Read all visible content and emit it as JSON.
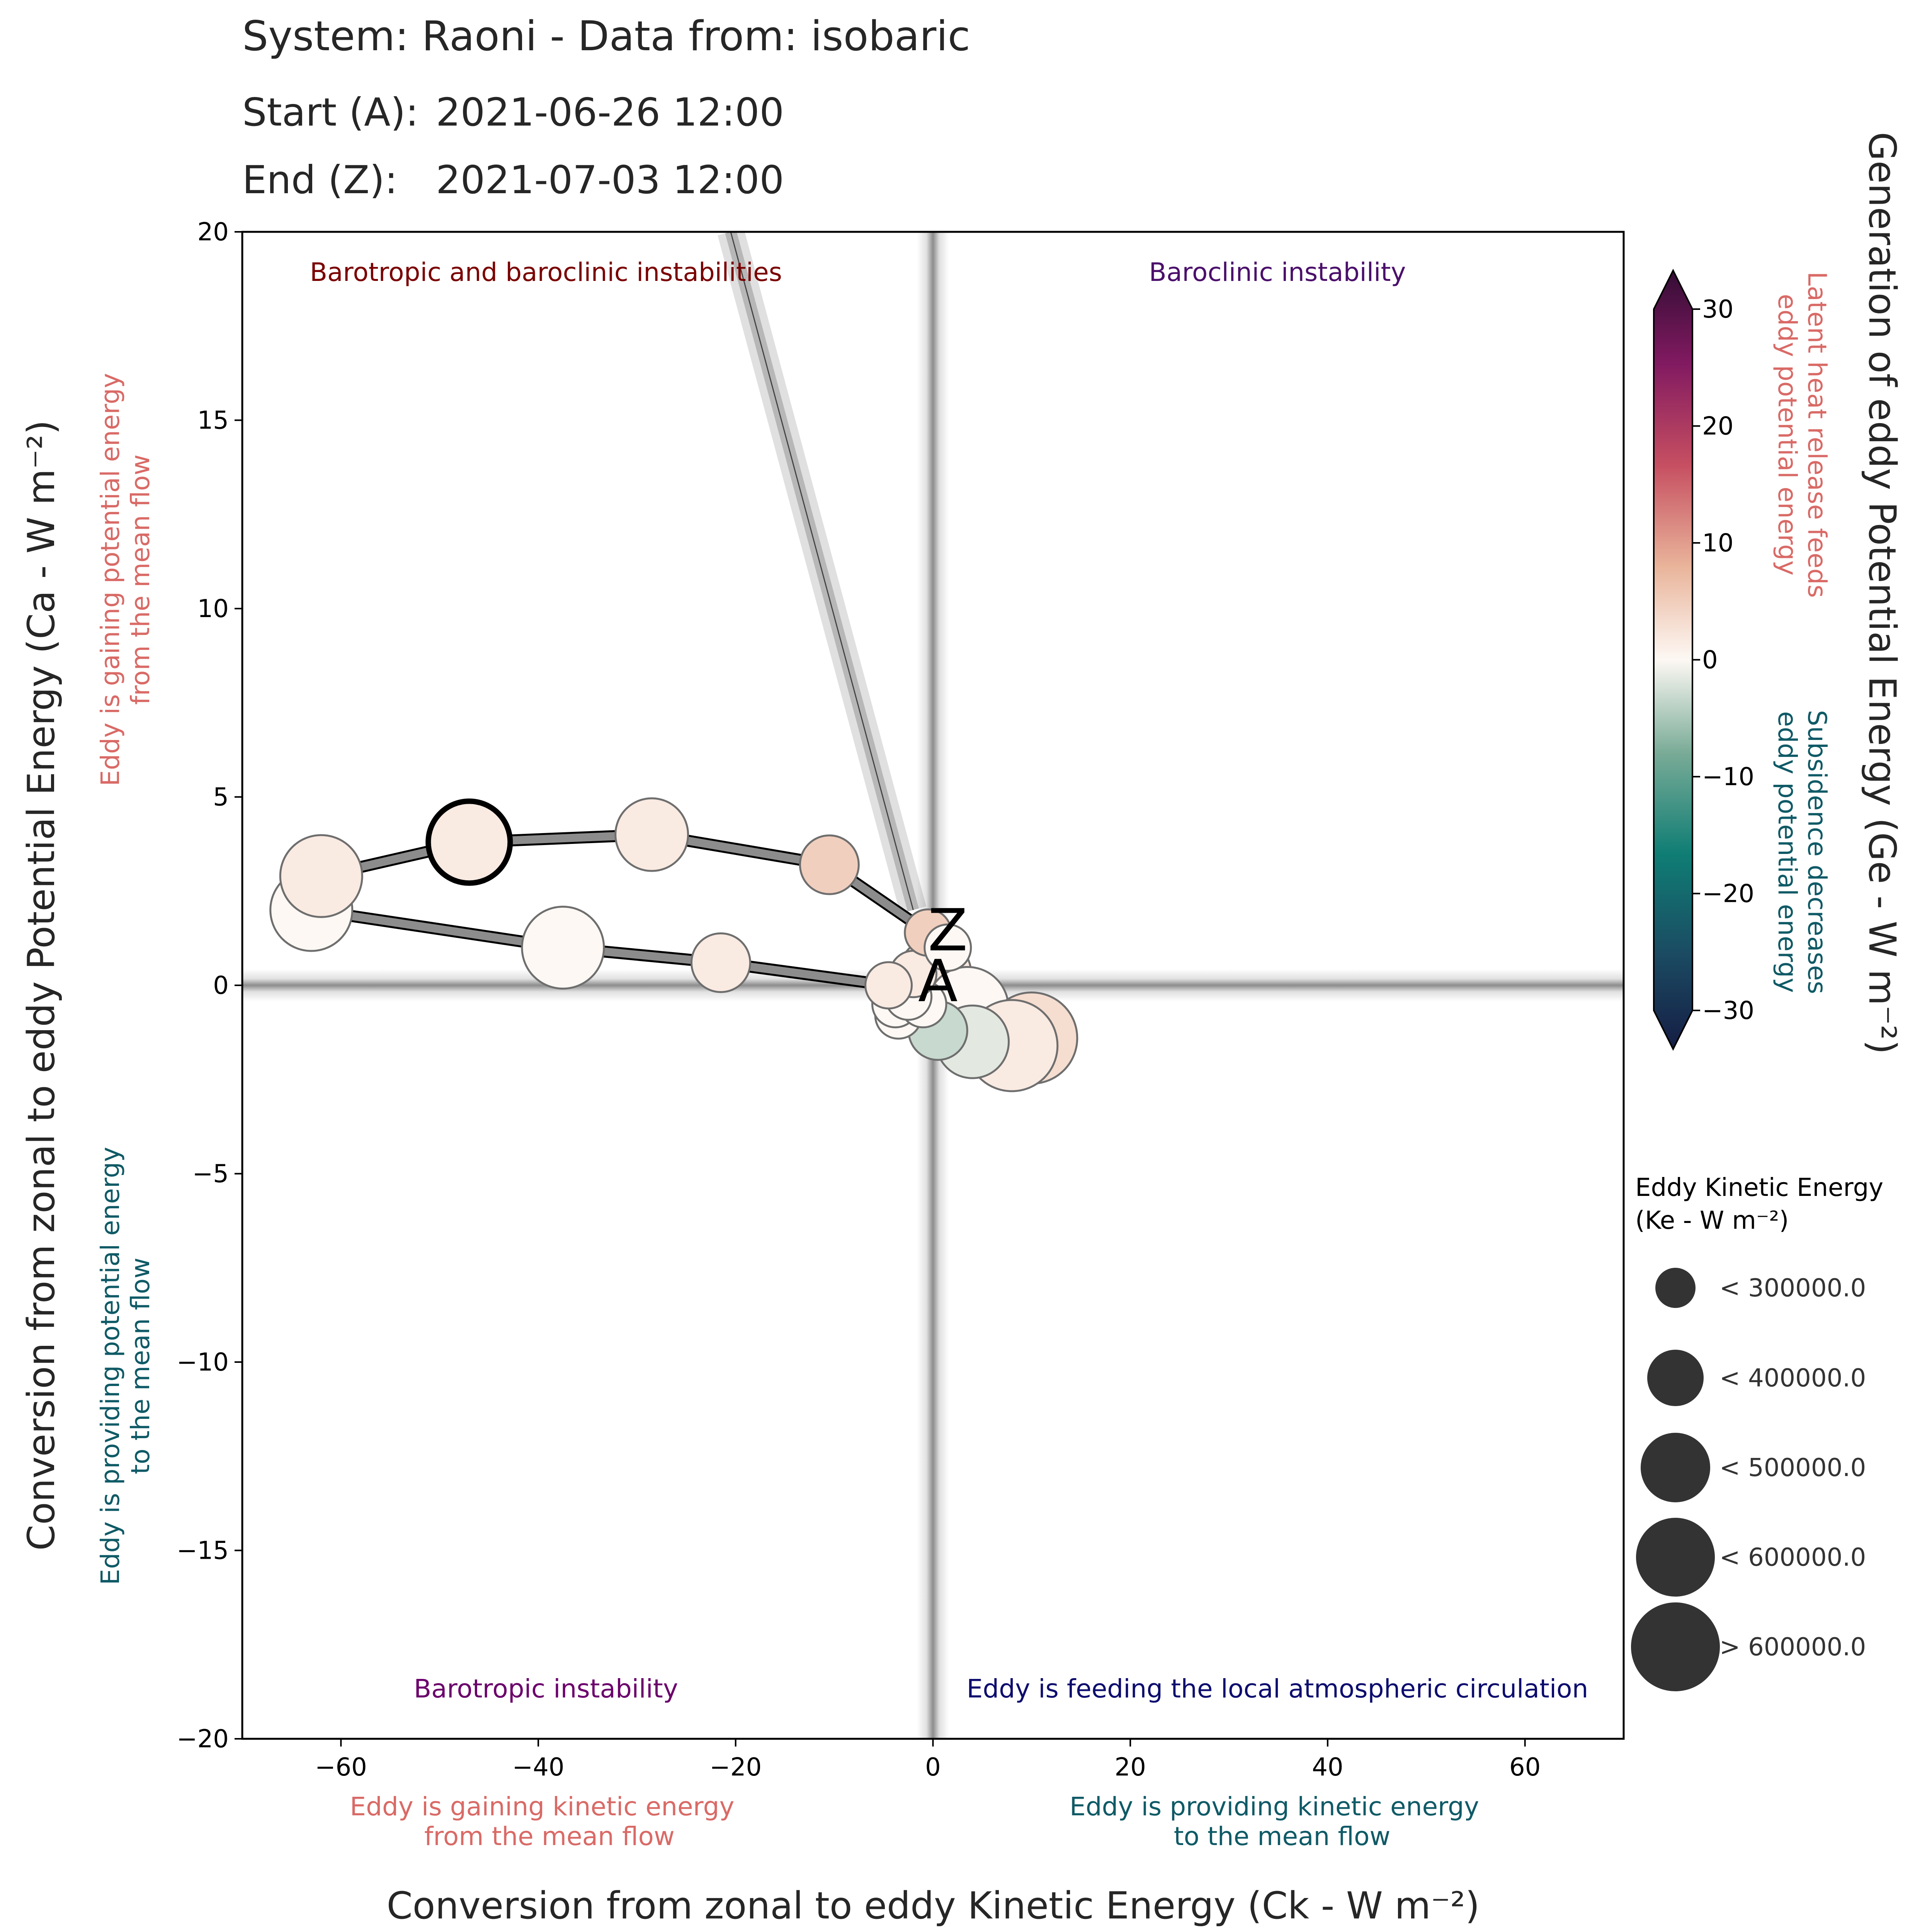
{
  "header": {
    "title": "System: Raoni - Data from: isobaric",
    "start_label": "Start (A):",
    "start_value": "2021-06-26 12:00",
    "end_label": "End (Z):",
    "end_value": "2021-07-03 12:00"
  },
  "quadrants": {
    "top_left": "Barotropic and baroclinic instabilities",
    "top_right": "Baroclinic instability",
    "bottom_left": "Barotropic instability",
    "bottom_right": "Eddy is feeding the local atmospheric circulation"
  },
  "side_notes": {
    "y_positive": [
      "Eddy is gaining potential energy",
      "from the mean flow"
    ],
    "y_negative": [
      "Eddy is providing potential energy",
      "to the mean flow"
    ],
    "x_negative": [
      "Eddy is gaining kinetic energy",
      "from the mean flow"
    ],
    "x_positive": [
      "Eddy is providing kinetic energy",
      "to the mean flow"
    ],
    "colorbar_positive": [
      "Latent heat release feeds",
      "eddy potential energy"
    ],
    "colorbar_negative": [
      "Subsidence decreases",
      "eddy potential energy"
    ]
  },
  "colors": {
    "note_positive": "#d96a66",
    "note_negative": "#0f5a66",
    "quad_top_left": "#7a0000",
    "quad_top_right": "#4b0f6b",
    "quad_bottom_left": "#6b006b",
    "quad_bottom_right": "#0c0c6e",
    "marker_stroke": "#6e6e6e",
    "arrow_fill": "#8c8c8c",
    "legend_fill": "#333333"
  },
  "start_marker": "A",
  "end_marker": "Z",
  "colorbar": {
    "label": "Generation of eddy Potential Energy (Ge - W m⁻²)",
    "range": [
      -30,
      30
    ],
    "ticks": [
      "−30",
      "−20",
      "−10",
      "0",
      "10",
      "20",
      "30"
    ],
    "colormap": "curl (navy–teal–pale–salmon–purple)"
  },
  "legend": {
    "title_line1": "Eddy Kinetic Energy",
    "title_line2": "(Ke - W m⁻²)",
    "items": [
      "< 300000.0",
      "< 400000.0",
      "< 500000.0",
      "< 600000.0",
      "> 600000.0"
    ]
  },
  "chart_data": {
    "type": "scatter",
    "title": "System: Raoni - Data from: isobaric",
    "xlabel": "Conversion from zonal to eddy Kinetic Energy (Ck - W m⁻²)",
    "ylabel": "Conversion from zonal to eddy Potential Energy (Ca - W m⁻²)",
    "xlim": [
      -70,
      70
    ],
    "ylim": [
      -20,
      20
    ],
    "xticks": [
      "−60",
      "−40",
      "−20",
      "0",
      "20",
      "40",
      "60"
    ],
    "yticks": [
      "−20",
      "−15",
      "−10",
      "−5",
      "0",
      "5",
      "10",
      "15",
      "20"
    ],
    "grid": false,
    "trajectory_order": "A → Z",
    "points": [
      {
        "ck": 0.2,
        "ca": 0.3,
        "ge": 1,
        "ke_class": 2
      },
      {
        "ck": 3.5,
        "ca": -0.6,
        "ge": 0,
        "ke_class": 3
      },
      {
        "ck": 10.0,
        "ca": -1.4,
        "ge": 2,
        "ke_class": 4
      },
      {
        "ck": 8.0,
        "ca": -1.6,
        "ge": 1,
        "ke_class": 4
      },
      {
        "ck": 4.0,
        "ca": -1.5,
        "ge": -1,
        "ke_class": 2
      },
      {
        "ck": 0.5,
        "ca": -1.2,
        "ge": -2,
        "ke_class": 1
      },
      {
        "ck": -3.5,
        "ca": -0.8,
        "ge": 0,
        "ke_class": 0
      },
      {
        "ck": -3.8,
        "ca": -0.5,
        "ge": 0,
        "ke_class": 0
      },
      {
        "ck": -1.0,
        "ca": -0.5,
        "ge": 0,
        "ke_class": 0
      },
      {
        "ck": -2.5,
        "ca": -0.3,
        "ge": 0,
        "ke_class": 0
      },
      {
        "ck": -2.0,
        "ca": 0.3,
        "ge": 1,
        "ke_class": 0
      },
      {
        "ck": -4.5,
        "ca": 0.0,
        "ge": 1,
        "ke_class": 0
      },
      {
        "ck": -21.5,
        "ca": 0.6,
        "ge": 1,
        "ke_class": 1
      },
      {
        "ck": -37.5,
        "ca": 1.0,
        "ge": 0,
        "ke_class": 3
      },
      {
        "ck": -63.0,
        "ca": 2.0,
        "ge": 0,
        "ke_class": 3
      },
      {
        "ck": -62.0,
        "ca": 2.9,
        "ge": 1,
        "ke_class": 3
      },
      {
        "ck": -47.0,
        "ca": 3.8,
        "ge": 1,
        "ke_class": 3,
        "highlight": true
      },
      {
        "ck": -28.5,
        "ca": 4.0,
        "ge": 1,
        "ke_class": 2
      },
      {
        "ck": -10.5,
        "ca": 3.2,
        "ge": 3,
        "ke_class": 1
      },
      {
        "ck": -0.5,
        "ca": 1.4,
        "ge": 3,
        "ke_class": 0
      },
      {
        "ck": 1.5,
        "ca": 1.0,
        "ge": 0,
        "ke_class": 0
      }
    ],
    "arrows": [
      {
        "from": [
          -63.0,
          2.0
        ],
        "to": [
          -37.5,
          1.0
        ]
      },
      {
        "from": [
          -37.5,
          1.0
        ],
        "to": [
          -21.5,
          0.6
        ]
      },
      {
        "from": [
          -21.5,
          0.6
        ],
        "to": [
          -4.5,
          0.0
        ]
      },
      {
        "from": [
          -0.5,
          1.4
        ],
        "to": [
          -10.5,
          3.2
        ]
      },
      {
        "from": [
          -10.5,
          3.2
        ],
        "to": [
          -28.5,
          4.0
        ]
      },
      {
        "from": [
          -28.5,
          4.0
        ],
        "to": [
          -47.0,
          3.8
        ]
      },
      {
        "from": [
          -47.0,
          3.8
        ],
        "to": [
          -62.0,
          2.9
        ]
      }
    ],
    "marker_A": [
      0.5,
      0.0
    ],
    "marker_Z": [
      1.5,
      1.4
    ],
    "trend_line": {
      "from": [
        -20.5,
        20
      ],
      "to": [
        -2.0,
        2.0
      ]
    }
  }
}
